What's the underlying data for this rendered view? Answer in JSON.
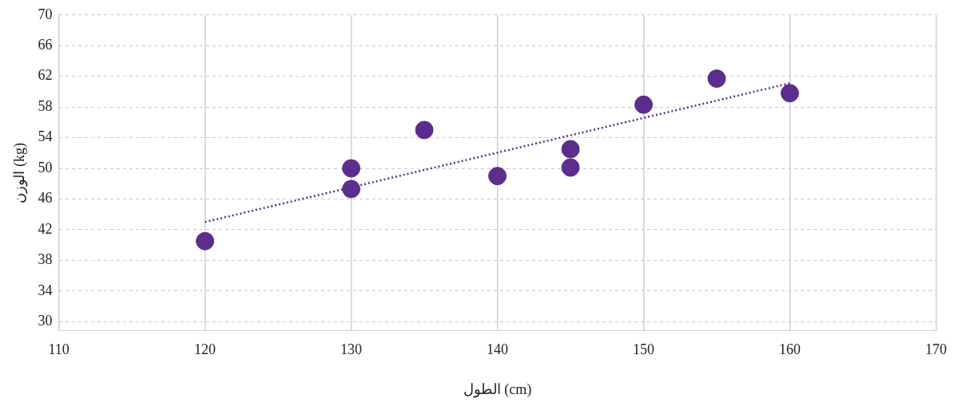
{
  "chart_data": {
    "type": "scatter",
    "xlabel": "الطول (cm)",
    "ylabel": "الوزن (kg)",
    "xlim": [
      110,
      170
    ],
    "xticks": [
      110,
      120,
      130,
      140,
      150,
      160,
      170
    ],
    "ylim": [
      28.8,
      70
    ],
    "yticks": [
      30,
      34,
      38,
      42,
      46,
      50,
      54,
      58,
      62,
      66,
      70
    ],
    "grid": true,
    "legend": false,
    "marker": "circle",
    "series": [
      {
        "color": "#5c2d8c",
        "x": [
          120,
          130,
          130,
          135,
          140,
          145,
          145,
          150,
          155,
          160
        ],
        "values": [
          40.5,
          50,
          47.3,
          55,
          49,
          52.5,
          50.1,
          58.3,
          61.7,
          59.8
        ]
      },
      {
        "type": "line",
        "color": "#5c2d8c",
        "line_style": "dotted",
        "marker": "none",
        "x": [
          120,
          160
        ],
        "values": [
          43,
          61.1
        ]
      }
    ]
  }
}
